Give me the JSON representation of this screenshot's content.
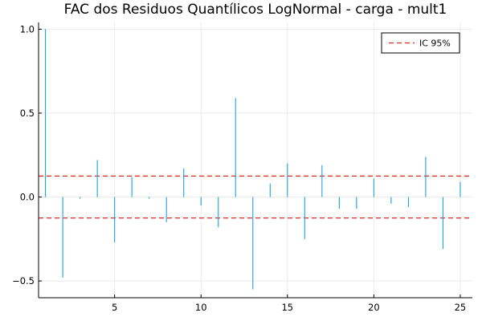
{
  "chart_data": {
    "type": "bar",
    "title": "FAC dos Residuos Quantílicos LogNormal - carga - mult1",
    "xlabel": "",
    "ylabel": "",
    "xlim": [
      0.6,
      25.7
    ],
    "ylim": [
      -0.6,
      1.04
    ],
    "x_ticks": [
      5,
      10,
      15,
      20,
      25
    ],
    "y_ticks": [
      -0.5,
      0.0,
      0.5,
      1.0
    ],
    "x_tick_labels": [
      "5",
      "10",
      "15",
      "20",
      "25"
    ],
    "y_tick_labels": [
      "−0.5",
      "0.0",
      "0.5",
      "1.0"
    ],
    "grid": true,
    "legend_position": "top-right",
    "series": [
      {
        "color": "#1f9fe0",
        "x": [
          1,
          2,
          3,
          4,
          5,
          6,
          7,
          8,
          9,
          10,
          11,
          12,
          13,
          14,
          15,
          16,
          17,
          18,
          19,
          20,
          21,
          22,
          23,
          24,
          25
        ],
        "values": [
          1.0,
          -0.48,
          -0.01,
          0.22,
          -0.27,
          0.12,
          -0.01,
          -0.15,
          0.17,
          -0.05,
          -0.18,
          0.59,
          -0.55,
          0.08,
          0.2,
          -0.25,
          0.19,
          -0.07,
          -0.07,
          0.11,
          -0.04,
          -0.06,
          0.24,
          -0.31,
          0.09
        ]
      }
    ],
    "confidence_interval": {
      "name": "IC 95%",
      "upper": 0.125,
      "lower": -0.125,
      "color": "#e0281e"
    }
  }
}
